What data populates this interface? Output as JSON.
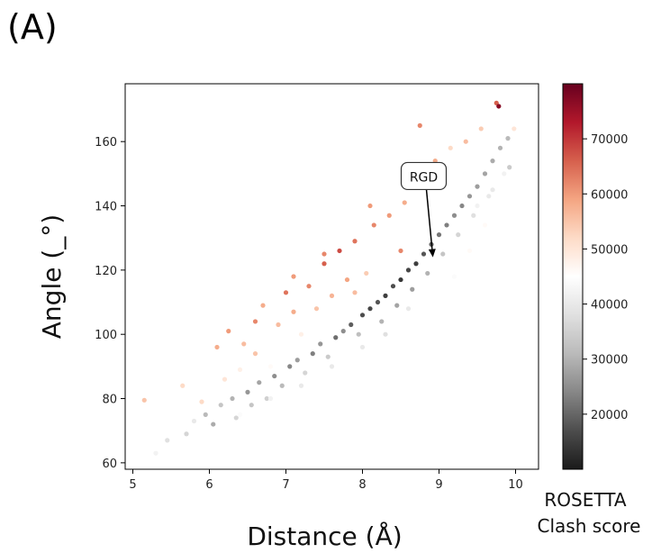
{
  "panel_label": "(A)",
  "chart_data": {
    "type": "scatter",
    "xlabel": "Distance (Å)",
    "ylabel": "Angle (_°)",
    "xlim": [
      4.9,
      10.3
    ],
    "ylim": [
      58,
      178
    ],
    "xticks": [
      5,
      6,
      7,
      8,
      9,
      10
    ],
    "yticks": [
      60,
      80,
      100,
      120,
      140,
      160
    ],
    "grid": false,
    "colorbar": {
      "title": [
        "ROSETTA",
        "Clash score"
      ],
      "range": [
        10000,
        80000
      ],
      "ticks": [
        20000,
        30000,
        40000,
        50000,
        60000,
        70000
      ],
      "colormap": [
        "#1a1a1a",
        "#4d4d4d",
        "#878787",
        "#bababa",
        "#e0e0e0",
        "#ffffff",
        "#fddbc7",
        "#f4a582",
        "#d6604d",
        "#b2182b",
        "#67001f"
      ]
    },
    "annotation": {
      "text": "RGD",
      "point": [
        8.92,
        124
      ],
      "label_at": [
        8.8,
        149
      ]
    },
    "points": [
      [
        5.15,
        79.5,
        55000
      ],
      [
        5.3,
        63,
        42000
      ],
      [
        5.45,
        67,
        38000
      ],
      [
        5.65,
        84,
        52000
      ],
      [
        5.7,
        69,
        36000
      ],
      [
        5.8,
        73,
        40000
      ],
      [
        5.9,
        79,
        52000
      ],
      [
        5.95,
        75,
        31000
      ],
      [
        6.05,
        72,
        29000
      ],
      [
        6.1,
        96,
        58000
      ],
      [
        6.15,
        78,
        33000
      ],
      [
        6.2,
        86,
        50000
      ],
      [
        6.25,
        101,
        60000
      ],
      [
        6.3,
        80,
        30000
      ],
      [
        6.35,
        74,
        36000
      ],
      [
        6.4,
        89,
        48000
      ],
      [
        6.45,
        97,
        56000
      ],
      [
        6.5,
        82,
        26000
      ],
      [
        6.55,
        78,
        33000
      ],
      [
        6.6,
        104,
        62000
      ],
      [
        6.65,
        85,
        28000
      ],
      [
        6.7,
        109,
        58000
      ],
      [
        6.75,
        80,
        35000
      ],
      [
        6.8,
        90,
        46000
      ],
      [
        6.85,
        87,
        25000
      ],
      [
        6.9,
        103,
        56000
      ],
      [
        6.95,
        84,
        31000
      ],
      [
        7.0,
        113,
        64000
      ],
      [
        7.05,
        90,
        24000
      ],
      [
        7.1,
        118,
        60000
      ],
      [
        7.15,
        92,
        27000
      ],
      [
        7.2,
        100,
        48000
      ],
      [
        7.25,
        88,
        36000
      ],
      [
        7.3,
        115,
        62000
      ],
      [
        7.35,
        94,
        23000
      ],
      [
        7.4,
        108,
        55000
      ],
      [
        7.45,
        97,
        26000
      ],
      [
        7.5,
        122,
        66000
      ],
      [
        7.55,
        93,
        34000
      ],
      [
        7.6,
        112,
        57000
      ],
      [
        7.65,
        99,
        21000
      ],
      [
        7.7,
        126,
        68000
      ],
      [
        7.75,
        101,
        25000
      ],
      [
        7.8,
        117,
        59000
      ],
      [
        7.85,
        103,
        19000
      ],
      [
        7.9,
        129,
        64000
      ],
      [
        7.95,
        100,
        32000
      ],
      [
        8.0,
        106,
        17000
      ],
      [
        8.05,
        119,
        54000
      ],
      [
        8.1,
        108,
        16000
      ],
      [
        8.15,
        134,
        62000
      ],
      [
        8.2,
        110,
        18000
      ],
      [
        8.25,
        104,
        30000
      ],
      [
        8.3,
        112,
        15000
      ],
      [
        8.35,
        137,
        60000
      ],
      [
        8.4,
        115,
        17000
      ],
      [
        8.45,
        109,
        28000
      ],
      [
        8.5,
        117,
        14000
      ],
      [
        8.55,
        141,
        58000
      ],
      [
        8.6,
        120,
        16000
      ],
      [
        8.65,
        114,
        27000
      ],
      [
        8.7,
        122,
        15000
      ],
      [
        8.75,
        165,
        62000
      ],
      [
        8.8,
        125,
        18000
      ],
      [
        8.85,
        119,
        30000
      ],
      [
        8.9,
        128,
        20000
      ],
      [
        8.95,
        154,
        58000
      ],
      [
        9.0,
        131,
        22000
      ],
      [
        9.05,
        125,
        33000
      ],
      [
        9.1,
        134,
        23000
      ],
      [
        9.15,
        158,
        52000
      ],
      [
        9.2,
        137,
        25000
      ],
      [
        9.25,
        131,
        36000
      ],
      [
        9.3,
        140,
        24000
      ],
      [
        9.35,
        160,
        56000
      ],
      [
        9.4,
        143,
        26000
      ],
      [
        9.45,
        137,
        38000
      ],
      [
        9.5,
        146,
        27000
      ],
      [
        9.55,
        164,
        54000
      ],
      [
        9.6,
        150,
        28000
      ],
      [
        9.65,
        143,
        40000
      ],
      [
        9.7,
        154,
        29000
      ],
      [
        9.75,
        172,
        66000
      ],
      [
        9.78,
        171,
        77000
      ],
      [
        9.8,
        158,
        30000
      ],
      [
        9.85,
        150,
        42000
      ],
      [
        9.9,
        161,
        31000
      ],
      [
        9.95,
        156,
        45000
      ],
      [
        9.98,
        164,
        50000
      ],
      [
        9.92,
        152,
        34000
      ],
      [
        9.7,
        145,
        40000
      ],
      [
        9.5,
        140,
        42000
      ],
      [
        8.3,
        100,
        38000
      ],
      [
        8.6,
        108,
        40000
      ],
      [
        8.0,
        96,
        40000
      ],
      [
        7.6,
        90,
        40000
      ],
      [
        7.2,
        84,
        40000
      ],
      [
        6.8,
        80,
        42000
      ],
      [
        6.4,
        75,
        44000
      ],
      [
        9.2,
        118,
        44000
      ],
      [
        9.4,
        126,
        46000
      ],
      [
        9.6,
        134,
        46000
      ],
      [
        7.5,
        125,
        62000
      ],
      [
        7.1,
        107,
        58000
      ],
      [
        6.6,
        94,
        55000
      ],
      [
        8.1,
        140,
        60000
      ],
      [
        8.5,
        126,
        62000
      ],
      [
        7.9,
        113,
        56000
      ]
    ]
  }
}
